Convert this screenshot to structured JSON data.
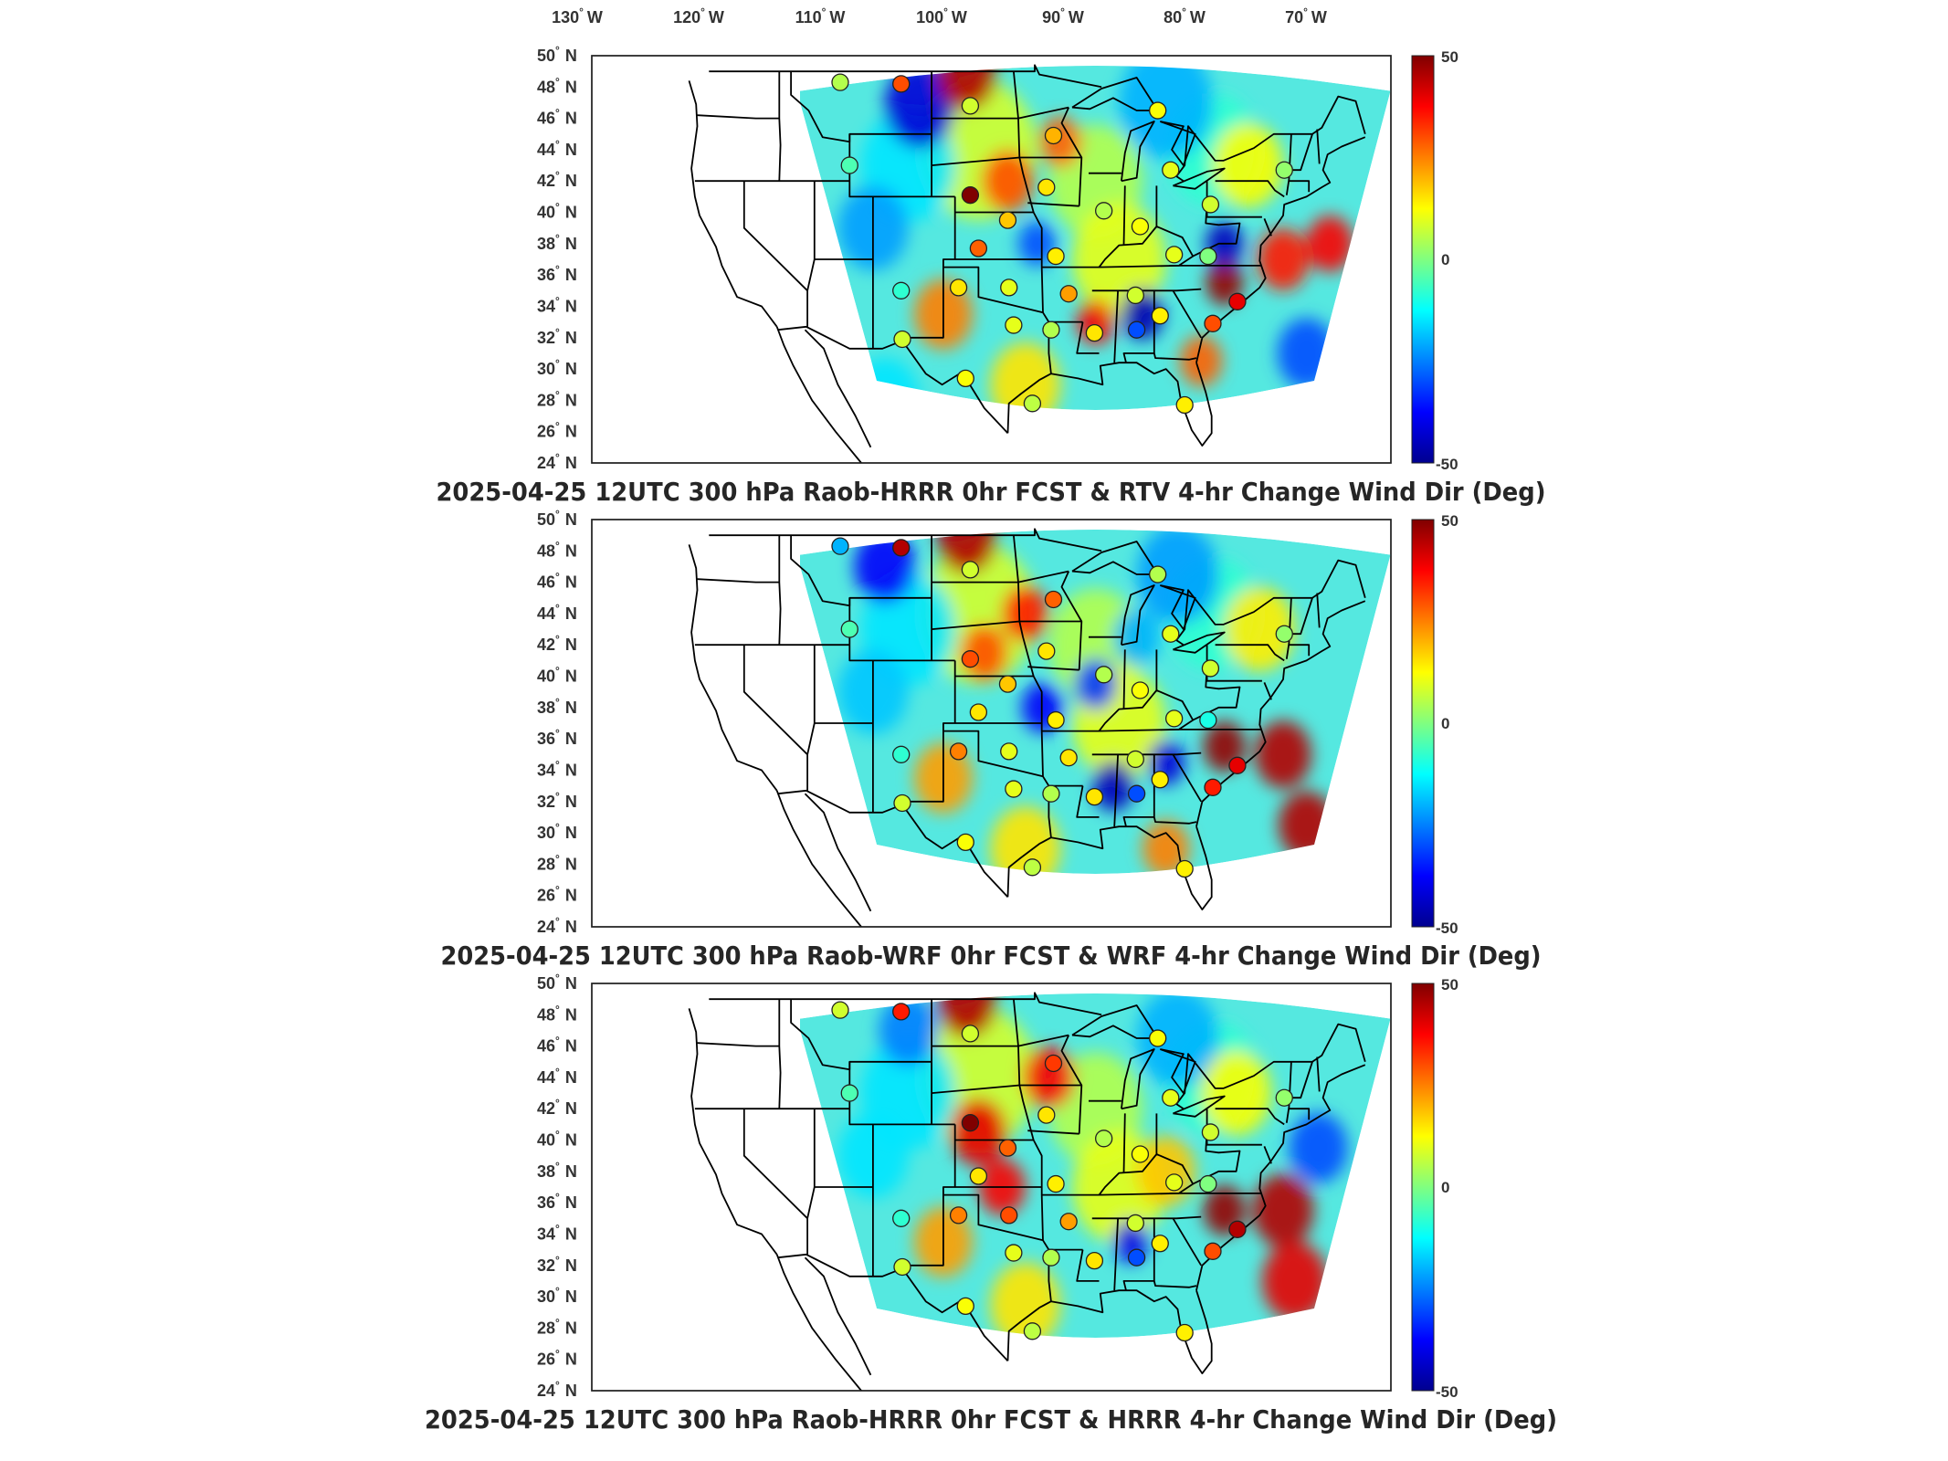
{
  "longitude_labels": [
    {
      "deg": "130",
      "hemi": "W"
    },
    {
      "deg": "120",
      "hemi": "W"
    },
    {
      "deg": "110",
      "hemi": "W"
    },
    {
      "deg": "100",
      "hemi": "W"
    },
    {
      "deg": "90",
      "hemi": "W"
    },
    {
      "deg": "80",
      "hemi": "W"
    },
    {
      "deg": "70",
      "hemi": "W"
    }
  ],
  "latitude_labels": [
    {
      "deg": "50",
      "hemi": "N"
    },
    {
      "deg": "48",
      "hemi": "N"
    },
    {
      "deg": "46",
      "hemi": "N"
    },
    {
      "deg": "44",
      "hemi": "N"
    },
    {
      "deg": "42",
      "hemi": "N"
    },
    {
      "deg": "40",
      "hemi": "N"
    },
    {
      "deg": "38",
      "hemi": "N"
    },
    {
      "deg": "36",
      "hemi": "N"
    },
    {
      "deg": "34",
      "hemi": "N"
    },
    {
      "deg": "32",
      "hemi": "N"
    },
    {
      "deg": "30",
      "hemi": "N"
    },
    {
      "deg": "28",
      "hemi": "N"
    },
    {
      "deg": "26",
      "hemi": "N"
    },
    {
      "deg": "24",
      "hemi": "N"
    }
  ],
  "degree_symbol": "°",
  "colorbar": {
    "max_label": "50",
    "mid_label": "0",
    "min_label": "-50",
    "range": [
      -50,
      50
    ],
    "colormap": [
      "#00008f",
      "#0000ff",
      "#0080ff",
      "#00ffff",
      "#80ff80",
      "#ffff00",
      "#ff8000",
      "#ff0000",
      "#800000"
    ]
  },
  "panels": [
    {
      "title": "2025-04-25 12UTC 300 hPa Raob-HRRR 0hr FCST & RTV 4-hr Change Wind Dir (Deg)",
      "field_blobs": [
        {
          "lon": -105,
          "lat": 46.8,
          "v": -42,
          "r": 3.0
        },
        {
          "lon": -101,
          "lat": 48.8,
          "v": 45,
          "r": 2.5
        },
        {
          "lon": -97.5,
          "lat": 42,
          "v": 30,
          "r": 2.2
        },
        {
          "lon": -93,
          "lat": 44.5,
          "v": 28,
          "r": 1.8
        },
        {
          "lon": -90,
          "lat": 33,
          "v": 38,
          "r": 1.6
        },
        {
          "lon": -86,
          "lat": 33.5,
          "v": -46,
          "r": 1.8
        },
        {
          "lon": -79,
          "lat": 35.5,
          "v": 48,
          "r": 1.6
        },
        {
          "lon": -79,
          "lat": 38,
          "v": -45,
          "r": 1.6
        },
        {
          "lon": -74,
          "lat": 37,
          "v": 35,
          "r": 2.2
        },
        {
          "lon": -70,
          "lat": 38,
          "v": 38,
          "r": 2.0
        },
        {
          "lon": -72,
          "lat": 31,
          "v": -30,
          "r": 2.5
        },
        {
          "lon": -103,
          "lat": 33.5,
          "v": 25,
          "r": 2.5
        },
        {
          "lon": -95,
          "lat": 38,
          "v": -30,
          "r": 1.6
        },
        {
          "lon": -109,
          "lat": 39,
          "v": -22,
          "r": 3.0
        },
        {
          "lon": -84,
          "lat": 47,
          "v": -20,
          "r": 4.0
        },
        {
          "lon": -77,
          "lat": 43,
          "v": 12,
          "r": 3.0
        },
        {
          "lon": -96,
          "lat": 29,
          "v": 15,
          "r": 3.0
        },
        {
          "lon": -108,
          "lat": 28,
          "v": -15,
          "r": 3.0
        },
        {
          "lon": -81,
          "lat": 30.5,
          "v": 28,
          "r": 1.8
        }
      ],
      "stations": [
        {
          "lon": -111.8,
          "lat": 48.3,
          "v": 5
        },
        {
          "lon": -106.6,
          "lat": 48.2,
          "v": 30
        },
        {
          "lon": -100.7,
          "lat": 46.8,
          "v": 8
        },
        {
          "lon": -93.6,
          "lat": 44.9,
          "v": 20
        },
        {
          "lon": -84.7,
          "lat": 46.5,
          "v": 12
        },
        {
          "lon": -111.0,
          "lat": 43.0,
          "v": -5
        },
        {
          "lon": -100.7,
          "lat": 41.1,
          "v": 50
        },
        {
          "lon": -94.2,
          "lat": 41.6,
          "v": 15
        },
        {
          "lon": -89.3,
          "lat": 40.1,
          "v": 5
        },
        {
          "lon": -83.6,
          "lat": 42.7,
          "v": 10
        },
        {
          "lon": -86.2,
          "lat": 39.1,
          "v": 12
        },
        {
          "lon": -80.2,
          "lat": 40.5,
          "v": 8
        },
        {
          "lon": -73.9,
          "lat": 42.7,
          "v": 2
        },
        {
          "lon": -97.5,
          "lat": 39.5,
          "v": 18
        },
        {
          "lon": -100.0,
          "lat": 37.7,
          "v": 28
        },
        {
          "lon": -93.4,
          "lat": 37.2,
          "v": 14
        },
        {
          "lon": -83.3,
          "lat": 37.3,
          "v": 10
        },
        {
          "lon": -80.4,
          "lat": 37.2,
          "v": 0
        },
        {
          "lon": -106.6,
          "lat": 35.0,
          "v": -8
        },
        {
          "lon": -101.7,
          "lat": 35.2,
          "v": 15
        },
        {
          "lon": -97.4,
          "lat": 35.2,
          "v": 10
        },
        {
          "lon": -92.3,
          "lat": 34.8,
          "v": 22
        },
        {
          "lon": -86.6,
          "lat": 34.7,
          "v": 8
        },
        {
          "lon": -84.5,
          "lat": 33.4,
          "v": 14
        },
        {
          "lon": -80.0,
          "lat": 32.9,
          "v": 30
        },
        {
          "lon": -77.9,
          "lat": 34.3,
          "v": 40
        },
        {
          "lon": -97.0,
          "lat": 32.8,
          "v": 10
        },
        {
          "lon": -93.8,
          "lat": 32.5,
          "v": 5
        },
        {
          "lon": -90.1,
          "lat": 32.3,
          "v": 15
        },
        {
          "lon": -86.5,
          "lat": 32.5,
          "v": -30
        },
        {
          "lon": -106.5,
          "lat": 31.9,
          "v": 8
        },
        {
          "lon": -101.1,
          "lat": 29.4,
          "v": 12
        },
        {
          "lon": -95.4,
          "lat": 27.8,
          "v": 6
        },
        {
          "lon": -82.4,
          "lat": 27.7,
          "v": 14
        }
      ]
    },
    {
      "title": "2025-04-25 12UTC 300 hPa Raob-WRF 0hr FCST & WRF 4-hr Change Wind Dir (Deg)",
      "field_blobs": [
        {
          "lon": -108,
          "lat": 47,
          "v": -38,
          "r": 2.6
        },
        {
          "lon": -101,
          "lat": 48.8,
          "v": 45,
          "r": 2.5
        },
        {
          "lon": -96,
          "lat": 44,
          "v": 35,
          "r": 2.0
        },
        {
          "lon": -99.5,
          "lat": 41.5,
          "v": 30,
          "r": 2.0
        },
        {
          "lon": -94.5,
          "lat": 38,
          "v": -38,
          "r": 1.8
        },
        {
          "lon": -90,
          "lat": 39.5,
          "v": -32,
          "r": 1.8
        },
        {
          "lon": -88.5,
          "lat": 33,
          "v": -45,
          "r": 1.8
        },
        {
          "lon": -84,
          "lat": 34.5,
          "v": -42,
          "r": 1.6
        },
        {
          "lon": -79,
          "lat": 35.5,
          "v": 48,
          "r": 1.8
        },
        {
          "lon": -74,
          "lat": 35,
          "v": 45,
          "r": 2.4
        },
        {
          "lon": -72,
          "lat": 30.5,
          "v": 45,
          "r": 2.4
        },
        {
          "lon": -103,
          "lat": 33.5,
          "v": 22,
          "r": 2.5
        },
        {
          "lon": -109,
          "lat": 39,
          "v": -18,
          "r": 3.0
        },
        {
          "lon": -83,
          "lat": 46.5,
          "v": -22,
          "r": 3.5
        },
        {
          "lon": -76,
          "lat": 43,
          "v": 14,
          "r": 3.0
        },
        {
          "lon": -96,
          "lat": 29,
          "v": 15,
          "r": 3.0
        },
        {
          "lon": -84,
          "lat": 29,
          "v": 25,
          "r": 2.0
        },
        {
          "lon": -86.5,
          "lat": 42.5,
          "v": -20,
          "r": 2.0
        }
      ],
      "stations": [
        {
          "lon": -111.8,
          "lat": 48.3,
          "v": -20
        },
        {
          "lon": -106.6,
          "lat": 48.2,
          "v": 45
        },
        {
          "lon": -100.7,
          "lat": 46.8,
          "v": 8
        },
        {
          "lon": -93.6,
          "lat": 44.9,
          "v": 28
        },
        {
          "lon": -84.7,
          "lat": 46.5,
          "v": 5
        },
        {
          "lon": -111.0,
          "lat": 43.0,
          "v": -5
        },
        {
          "lon": -100.7,
          "lat": 41.1,
          "v": 30
        },
        {
          "lon": -94.2,
          "lat": 41.6,
          "v": 15
        },
        {
          "lon": -89.3,
          "lat": 40.1,
          "v": 5
        },
        {
          "lon": -83.6,
          "lat": 42.7,
          "v": 10
        },
        {
          "lon": -86.2,
          "lat": 39.1,
          "v": 12
        },
        {
          "lon": -80.2,
          "lat": 40.5,
          "v": 8
        },
        {
          "lon": -73.9,
          "lat": 42.7,
          "v": 2
        },
        {
          "lon": -97.5,
          "lat": 39.5,
          "v": 18
        },
        {
          "lon": -100.0,
          "lat": 37.7,
          "v": 15
        },
        {
          "lon": -93.4,
          "lat": 37.2,
          "v": 14
        },
        {
          "lon": -83.3,
          "lat": 37.3,
          "v": 10
        },
        {
          "lon": -80.4,
          "lat": 37.2,
          "v": -10
        },
        {
          "lon": -106.6,
          "lat": 35.0,
          "v": -8
        },
        {
          "lon": -101.7,
          "lat": 35.2,
          "v": 25
        },
        {
          "lon": -97.4,
          "lat": 35.2,
          "v": 10
        },
        {
          "lon": -92.3,
          "lat": 34.8,
          "v": 15
        },
        {
          "lon": -86.6,
          "lat": 34.7,
          "v": 8
        },
        {
          "lon": -84.5,
          "lat": 33.4,
          "v": 14
        },
        {
          "lon": -80.0,
          "lat": 32.9,
          "v": 35
        },
        {
          "lon": -77.9,
          "lat": 34.3,
          "v": 40
        },
        {
          "lon": -97.0,
          "lat": 32.8,
          "v": 10
        },
        {
          "lon": -93.8,
          "lat": 32.5,
          "v": 5
        },
        {
          "lon": -90.1,
          "lat": 32.3,
          "v": 15
        },
        {
          "lon": -86.5,
          "lat": 32.5,
          "v": -30
        },
        {
          "lon": -106.5,
          "lat": 31.9,
          "v": 8
        },
        {
          "lon": -101.1,
          "lat": 29.4,
          "v": 12
        },
        {
          "lon": -95.4,
          "lat": 27.8,
          "v": 6
        },
        {
          "lon": -82.4,
          "lat": 27.7,
          "v": 14
        }
      ]
    },
    {
      "title": "2025-04-25 12UTC 300 hPa Raob-HRRR 0hr FCST & HRRR 4-hr Change Wind Dir (Deg)",
      "field_blobs": [
        {
          "lon": -106,
          "lat": 47,
          "v": -25,
          "r": 2.5
        },
        {
          "lon": -101,
          "lat": 48.8,
          "v": 45,
          "r": 2.5
        },
        {
          "lon": -100,
          "lat": 40.5,
          "v": 40,
          "r": 2.4
        },
        {
          "lon": -94,
          "lat": 44,
          "v": 38,
          "r": 2.2
        },
        {
          "lon": -98,
          "lat": 37,
          "v": 38,
          "r": 2.0
        },
        {
          "lon": -87,
          "lat": 33.5,
          "v": -40,
          "r": 1.5
        },
        {
          "lon": -79,
          "lat": 35.5,
          "v": 48,
          "r": 1.8
        },
        {
          "lon": -74,
          "lat": 35.5,
          "v": 45,
          "r": 2.6
        },
        {
          "lon": -73,
          "lat": 31,
          "v": 40,
          "r": 2.8
        },
        {
          "lon": -71,
          "lat": 39.5,
          "v": -30,
          "r": 2.5
        },
        {
          "lon": -103,
          "lat": 33.5,
          "v": 22,
          "r": 2.5
        },
        {
          "lon": -109,
          "lat": 39,
          "v": -15,
          "r": 3.0
        },
        {
          "lon": -83,
          "lat": 46.5,
          "v": -20,
          "r": 3.5
        },
        {
          "lon": -78,
          "lat": 43,
          "v": 12,
          "r": 3.0
        },
        {
          "lon": -96,
          "lat": 29.5,
          "v": 15,
          "r": 3.0
        },
        {
          "lon": -84,
          "lat": 38,
          "v": 18,
          "r": 2.5
        }
      ],
      "stations": [
        {
          "lon": -111.8,
          "lat": 48.3,
          "v": 8
        },
        {
          "lon": -106.6,
          "lat": 48.2,
          "v": 35
        },
        {
          "lon": -100.7,
          "lat": 46.8,
          "v": 8
        },
        {
          "lon": -93.6,
          "lat": 44.9,
          "v": 32
        },
        {
          "lon": -84.7,
          "lat": 46.5,
          "v": 12
        },
        {
          "lon": -111.0,
          "lat": 43.0,
          "v": -5
        },
        {
          "lon": -100.7,
          "lat": 41.1,
          "v": 50
        },
        {
          "lon": -94.2,
          "lat": 41.6,
          "v": 15
        },
        {
          "lon": -89.3,
          "lat": 40.1,
          "v": 5
        },
        {
          "lon": -83.6,
          "lat": 42.7,
          "v": 10
        },
        {
          "lon": -86.2,
          "lat": 39.1,
          "v": 12
        },
        {
          "lon": -80.2,
          "lat": 40.5,
          "v": 8
        },
        {
          "lon": -73.9,
          "lat": 42.7,
          "v": 2
        },
        {
          "lon": -97.5,
          "lat": 39.5,
          "v": 28
        },
        {
          "lon": -100.0,
          "lat": 37.7,
          "v": 15
        },
        {
          "lon": -93.4,
          "lat": 37.2,
          "v": 14
        },
        {
          "lon": -83.3,
          "lat": 37.3,
          "v": 10
        },
        {
          "lon": -80.4,
          "lat": 37.2,
          "v": 0
        },
        {
          "lon": -106.6,
          "lat": 35.0,
          "v": -8
        },
        {
          "lon": -101.7,
          "lat": 35.2,
          "v": 25
        },
        {
          "lon": -97.4,
          "lat": 35.2,
          "v": 30
        },
        {
          "lon": -92.3,
          "lat": 34.8,
          "v": 22
        },
        {
          "lon": -86.6,
          "lat": 34.7,
          "v": 8
        },
        {
          "lon": -84.5,
          "lat": 33.4,
          "v": 14
        },
        {
          "lon": -80.0,
          "lat": 32.9,
          "v": 30
        },
        {
          "lon": -77.9,
          "lat": 34.3,
          "v": 45
        },
        {
          "lon": -97.0,
          "lat": 32.8,
          "v": 10
        },
        {
          "lon": -93.8,
          "lat": 32.5,
          "v": 5
        },
        {
          "lon": -90.1,
          "lat": 32.3,
          "v": 15
        },
        {
          "lon": -86.5,
          "lat": 32.5,
          "v": -30
        },
        {
          "lon": -106.5,
          "lat": 31.9,
          "v": 8
        },
        {
          "lon": -101.1,
          "lat": 29.4,
          "v": 12
        },
        {
          "lon": -95.4,
          "lat": 27.8,
          "v": 6
        },
        {
          "lon": -82.4,
          "lat": 27.7,
          "v": 14
        }
      ]
    }
  ]
}
